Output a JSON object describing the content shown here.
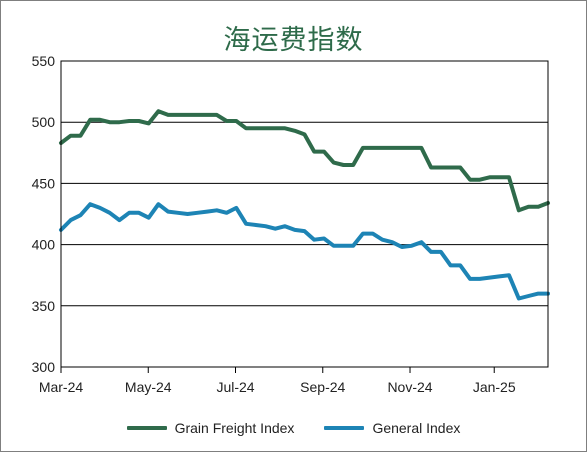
{
  "chart_data": {
    "type": "line",
    "title": "海运费指数",
    "xlabel": "",
    "ylabel": "",
    "ylim": [
      300,
      550
    ],
    "yticks": [
      300,
      350,
      400,
      450,
      500,
      550
    ],
    "xlim": [
      0,
      48
    ],
    "xticks": [
      {
        "label": "Mar-24",
        "x": 0
      },
      {
        "label": "May-24",
        "x": 8.6
      },
      {
        "label": "Jul-24",
        "x": 17.2
      },
      {
        "label": "Sep-24",
        "x": 25.8
      },
      {
        "label": "Nov-24",
        "x": 34.4
      },
      {
        "label": "Jan-25",
        "x": 42.7
      }
    ],
    "legend_position": "bottom",
    "grid": "horizontal",
    "series": [
      {
        "name": "Grain Freight Index",
        "color": "#2f6b4b",
        "points": [
          [
            0,
            483
          ],
          [
            1,
            489
          ],
          [
            2,
            489
          ],
          [
            3,
            502
          ],
          [
            4,
            502
          ],
          [
            5,
            500
          ],
          [
            6,
            500
          ],
          [
            7,
            501
          ],
          [
            8,
            501
          ],
          [
            9,
            499
          ],
          [
            10,
            509
          ],
          [
            11,
            506
          ],
          [
            12,
            506
          ],
          [
            13,
            506
          ],
          [
            14,
            506
          ],
          [
            15,
            506
          ],
          [
            16,
            506
          ],
          [
            17,
            501
          ],
          [
            18,
            501
          ],
          [
            19,
            495
          ],
          [
            20,
            495
          ],
          [
            21,
            495
          ],
          [
            22,
            495
          ],
          [
            23,
            495
          ],
          [
            24,
            493
          ],
          [
            25,
            490
          ],
          [
            26,
            476
          ],
          [
            27,
            476
          ],
          [
            28,
            467
          ],
          [
            29,
            465
          ],
          [
            30,
            465
          ],
          [
            31,
            479
          ],
          [
            32,
            479
          ],
          [
            33,
            479
          ],
          [
            34,
            479
          ],
          [
            35,
            479
          ],
          [
            36,
            479
          ],
          [
            37,
            479
          ],
          [
            38,
            463
          ],
          [
            39,
            463
          ],
          [
            40,
            463
          ],
          [
            41,
            463
          ],
          [
            42,
            453
          ],
          [
            43,
            453
          ],
          [
            44,
            455
          ],
          [
            45,
            455
          ],
          [
            46,
            455
          ],
          [
            47,
            428
          ],
          [
            48,
            431
          ],
          [
            49,
            431
          ],
          [
            50,
            434
          ]
        ]
      },
      {
        "name": "General Index",
        "color": "#1d84b5",
        "points": [
          [
            0,
            412
          ],
          [
            1,
            420
          ],
          [
            2,
            424
          ],
          [
            3,
            433
          ],
          [
            4,
            430
          ],
          [
            5,
            426
          ],
          [
            6,
            420
          ],
          [
            7,
            426
          ],
          [
            8,
            426
          ],
          [
            9,
            422
          ],
          [
            10,
            433
          ],
          [
            11,
            427
          ],
          [
            12,
            426
          ],
          [
            13,
            425
          ],
          [
            14,
            426
          ],
          [
            15,
            427
          ],
          [
            16,
            428
          ],
          [
            17,
            426
          ],
          [
            18,
            430
          ],
          [
            19,
            417
          ],
          [
            20,
            416
          ],
          [
            21,
            415
          ],
          [
            22,
            413
          ],
          [
            23,
            415
          ],
          [
            24,
            412
          ],
          [
            25,
            411
          ],
          [
            26,
            404
          ],
          [
            27,
            405
          ],
          [
            28,
            399
          ],
          [
            29,
            399
          ],
          [
            30,
            399
          ],
          [
            31,
            409
          ],
          [
            32,
            409
          ],
          [
            33,
            404
          ],
          [
            34,
            402
          ],
          [
            35,
            398
          ],
          [
            36,
            399
          ],
          [
            37,
            402
          ],
          [
            38,
            394
          ],
          [
            39,
            394
          ],
          [
            40,
            383
          ],
          [
            41,
            383
          ],
          [
            42,
            372
          ],
          [
            43,
            372
          ],
          [
            44,
            373
          ],
          [
            45,
            374
          ],
          [
            46,
            375
          ],
          [
            47,
            356
          ],
          [
            48,
            358
          ],
          [
            49,
            360
          ],
          [
            50,
            360
          ]
        ]
      }
    ]
  }
}
